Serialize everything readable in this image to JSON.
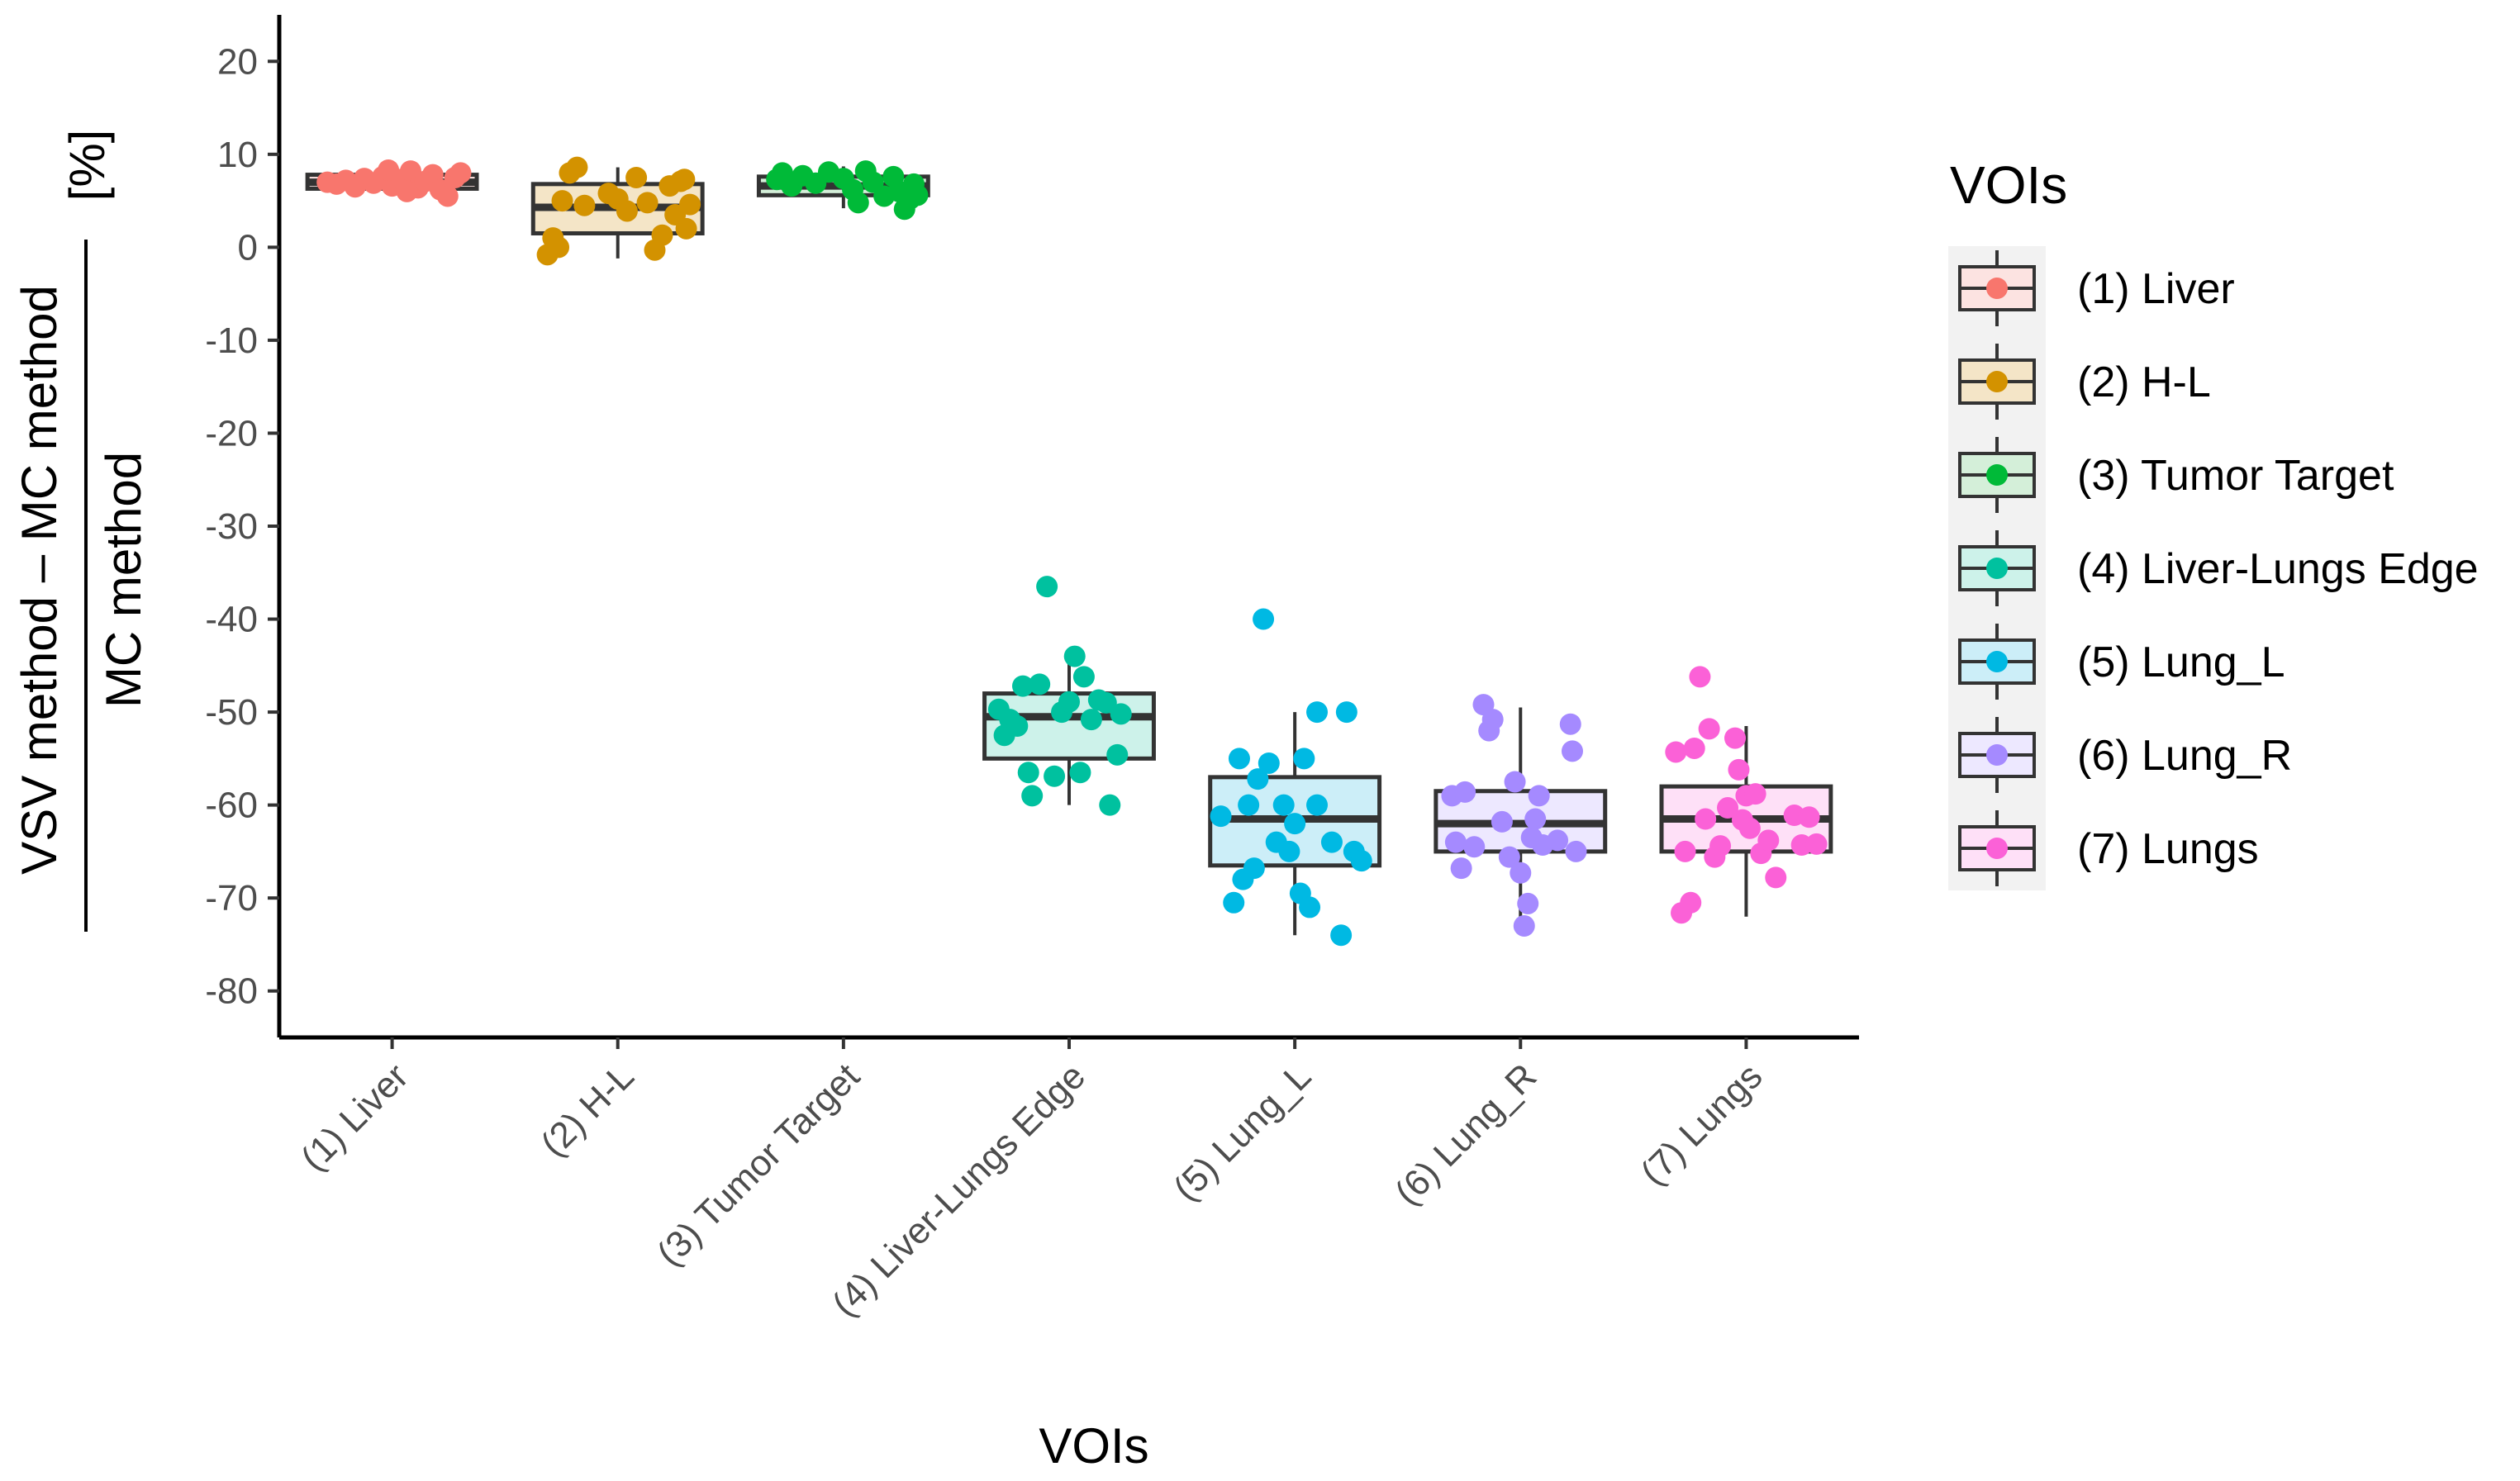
{
  "chart_data": {
    "type": "boxplot",
    "title": "",
    "xlabel": "VOIs",
    "ylabel": {
      "numerator": "VSV method – MC method",
      "denominator": "MC method",
      "unit": "[%]"
    },
    "ylim": [
      -85,
      25
    ],
    "yticks": [
      20,
      10,
      0,
      -10,
      -20,
      -30,
      -40,
      -50,
      -60,
      -70,
      -80
    ],
    "ytick_labels": [
      "20",
      "10",
      "0",
      "-10",
      "-20",
      "-30",
      "-40",
      "-50",
      "-60",
      "-70",
      "-80"
    ],
    "grid": false,
    "legend": {
      "title": "VOIs",
      "position": "right"
    },
    "categories": [
      "(1) Liver",
      "(2) H-L",
      "(3) Tumor Target",
      "(4) Liver-Lungs Edge",
      "(5) Lung_L",
      "(6) Lung_R",
      "(7) Lungs"
    ],
    "series": [
      {
        "name": "(1) Liver",
        "color": "#F8766D",
        "fill": "#FCE3E1",
        "box": {
          "whisker_low": 5.8,
          "q1": 6.3,
          "median": 7.0,
          "q3": 7.8,
          "whisker_high": 8.5
        },
        "points": [
          {
            "x": -0.35,
            "y": 7.0
          },
          {
            "x": -0.3,
            "y": 6.8
          },
          {
            "x": -0.25,
            "y": 7.2
          },
          {
            "x": -0.2,
            "y": 6.5
          },
          {
            "x": -0.15,
            "y": 7.4
          },
          {
            "x": -0.1,
            "y": 6.9
          },
          {
            "x": -0.05,
            "y": 7.6
          },
          {
            "x": 0.0,
            "y": 6.6
          },
          {
            "x": 0.05,
            "y": 7.3
          },
          {
            "x": 0.1,
            "y": 8.2
          },
          {
            "x": 0.14,
            "y": 6.4
          },
          {
            "x": 0.18,
            "y": 7.1
          },
          {
            "x": 0.22,
            "y": 7.8
          },
          {
            "x": 0.26,
            "y": 6.2
          },
          {
            "x": 0.3,
            "y": 5.5
          },
          {
            "x": 0.34,
            "y": 7.5
          },
          {
            "x": 0.37,
            "y": 8.0
          },
          {
            "x": -0.02,
            "y": 8.3
          },
          {
            "x": 0.08,
            "y": 6.0
          }
        ]
      },
      {
        "name": "(2) H-L",
        "color": "#D39200",
        "fill": "#F4E5C7",
        "box": {
          "whisker_low": -1.2,
          "q1": 1.5,
          "median": 4.3,
          "q3": 6.8,
          "whisker_high": 8.6
        },
        "points": [
          {
            "x": -0.38,
            "y": -0.8
          },
          {
            "x": -0.35,
            "y": 1.0
          },
          {
            "x": -0.32,
            "y": 0.0
          },
          {
            "x": -0.3,
            "y": 5.0
          },
          {
            "x": -0.26,
            "y": 8.0
          },
          {
            "x": -0.22,
            "y": 8.6
          },
          {
            "x": -0.18,
            "y": 4.5
          },
          {
            "x": -0.05,
            "y": 5.8
          },
          {
            "x": 0.0,
            "y": 5.2
          },
          {
            "x": 0.05,
            "y": 3.9
          },
          {
            "x": 0.1,
            "y": 7.5
          },
          {
            "x": 0.16,
            "y": 4.8
          },
          {
            "x": 0.2,
            "y": -0.3
          },
          {
            "x": 0.24,
            "y": 1.3
          },
          {
            "x": 0.28,
            "y": 6.6
          },
          {
            "x": 0.31,
            "y": 3.5
          },
          {
            "x": 0.34,
            "y": 7.1
          },
          {
            "x": 0.37,
            "y": 2.0
          },
          {
            "x": 0.39,
            "y": 4.6
          },
          {
            "x": 0.36,
            "y": 7.3
          }
        ]
      },
      {
        "name": "(3) Tumor Target",
        "color": "#00BA38",
        "fill": "#D4EFD9",
        "box": {
          "whisker_low": 4.2,
          "q1": 5.6,
          "median": 6.6,
          "q3": 7.6,
          "whisker_high": 8.7
        },
        "points": [
          {
            "x": -0.36,
            "y": 7.3
          },
          {
            "x": -0.33,
            "y": 8.0
          },
          {
            "x": -0.28,
            "y": 6.6
          },
          {
            "x": -0.22,
            "y": 7.7
          },
          {
            "x": -0.15,
            "y": 6.9
          },
          {
            "x": -0.08,
            "y": 8.1
          },
          {
            "x": 0.0,
            "y": 7.4
          },
          {
            "x": 0.05,
            "y": 6.2
          },
          {
            "x": 0.08,
            "y": 4.8
          },
          {
            "x": 0.12,
            "y": 8.2
          },
          {
            "x": 0.16,
            "y": 7.0
          },
          {
            "x": 0.22,
            "y": 5.5
          },
          {
            "x": 0.27,
            "y": 7.6
          },
          {
            "x": 0.3,
            "y": 6.0
          },
          {
            "x": 0.33,
            "y": 4.1
          },
          {
            "x": 0.36,
            "y": 5.2
          },
          {
            "x": 0.38,
            "y": 6.8
          },
          {
            "x": 0.4,
            "y": 5.6
          }
        ]
      },
      {
        "name": "(4) Liver-Lungs Edge",
        "color": "#00C19F",
        "fill": "#CDF2EA",
        "box": {
          "whisker_low": -60.0,
          "q1": -55.0,
          "median": -50.5,
          "q3": -48.0,
          "whisker_high": -44.5
        },
        "points": [
          {
            "x": -0.38,
            "y": -49.7
          },
          {
            "x": -0.35,
            "y": -52.5
          },
          {
            "x": -0.32,
            "y": -50.8
          },
          {
            "x": -0.28,
            "y": -51.5
          },
          {
            "x": -0.25,
            "y": -47.2
          },
          {
            "x": -0.22,
            "y": -56.5
          },
          {
            "x": -0.2,
            "y": -59.0
          },
          {
            "x": -0.16,
            "y": -47.0
          },
          {
            "x": -0.12,
            "y": -36.5
          },
          {
            "x": -0.08,
            "y": -56.9
          },
          {
            "x": -0.04,
            "y": -50.0
          },
          {
            "x": 0.0,
            "y": -48.9
          },
          {
            "x": 0.03,
            "y": -44.0
          },
          {
            "x": 0.06,
            "y": -56.5
          },
          {
            "x": 0.08,
            "y": -46.2
          },
          {
            "x": 0.12,
            "y": -50.8
          },
          {
            "x": 0.16,
            "y": -48.7
          },
          {
            "x": 0.2,
            "y": -49.0
          },
          {
            "x": 0.22,
            "y": -60.0
          },
          {
            "x": 0.26,
            "y": -54.6
          },
          {
            "x": 0.28,
            "y": -50.2
          }
        ]
      },
      {
        "name": "(5) Lung_L",
        "color": "#00B9E3",
        "fill": "#CCEEF8",
        "box": {
          "whisker_low": -74.0,
          "q1": -66.5,
          "median": -61.5,
          "q3": -57.0,
          "whisker_high": -50.0
        },
        "points": [
          {
            "x": -0.4,
            "y": -61.2
          },
          {
            "x": -0.33,
            "y": -70.5
          },
          {
            "x": -0.3,
            "y": -55.0
          },
          {
            "x": -0.28,
            "y": -68.0
          },
          {
            "x": -0.25,
            "y": -60.0
          },
          {
            "x": -0.22,
            "y": -66.8
          },
          {
            "x": -0.2,
            "y": -57.2
          },
          {
            "x": -0.17,
            "y": -40.0
          },
          {
            "x": -0.14,
            "y": -55.5
          },
          {
            "x": -0.1,
            "y": -64.0
          },
          {
            "x": -0.06,
            "y": -60.0
          },
          {
            "x": -0.03,
            "y": -65.0
          },
          {
            "x": 0.0,
            "y": -62.0
          },
          {
            "x": 0.03,
            "y": -69.5
          },
          {
            "x": 0.05,
            "y": -55.0
          },
          {
            "x": 0.08,
            "y": -71.0
          },
          {
            "x": 0.12,
            "y": -60.0
          },
          {
            "x": 0.2,
            "y": -64.0
          },
          {
            "x": 0.25,
            "y": -74.0
          },
          {
            "x": 0.28,
            "y": -50.0
          },
          {
            "x": 0.32,
            "y": -65.0
          },
          {
            "x": 0.36,
            "y": -66.0
          },
          {
            "x": 0.12,
            "y": -50.0
          }
        ]
      },
      {
        "name": "(6) Lung_R",
        "color": "#A58AFF",
        "fill": "#EDE8FF",
        "box": {
          "whisker_low": -73.0,
          "q1": -65.0,
          "median": -62.0,
          "q3": -58.5,
          "whisker_high": -49.5
        },
        "points": [
          {
            "x": -0.37,
            "y": -59.0
          },
          {
            "x": -0.35,
            "y": -64.0
          },
          {
            "x": -0.32,
            "y": -66.8
          },
          {
            "x": -0.3,
            "y": -58.6
          },
          {
            "x": -0.25,
            "y": -64.5
          },
          {
            "x": -0.2,
            "y": -49.2
          },
          {
            "x": -0.17,
            "y": -52.0
          },
          {
            "x": -0.15,
            "y": -50.8
          },
          {
            "x": -0.1,
            "y": -61.8
          },
          {
            "x": -0.06,
            "y": -65.6
          },
          {
            "x": -0.03,
            "y": -57.5
          },
          {
            "x": 0.0,
            "y": -67.3
          },
          {
            "x": 0.02,
            "y": -73.0
          },
          {
            "x": 0.04,
            "y": -70.6
          },
          {
            "x": 0.06,
            "y": -63.5
          },
          {
            "x": 0.08,
            "y": -61.5
          },
          {
            "x": 0.1,
            "y": -59.0
          },
          {
            "x": 0.12,
            "y": -64.3
          },
          {
            "x": 0.2,
            "y": -63.8
          },
          {
            "x": 0.27,
            "y": -51.3
          },
          {
            "x": 0.28,
            "y": -54.2
          },
          {
            "x": 0.3,
            "y": -65.0
          }
        ]
      },
      {
        "name": "(7) Lungs",
        "color": "#FB61D7",
        "fill": "#FEE0F7",
        "box": {
          "whisker_low": -72.0,
          "q1": -65.0,
          "median": -61.5,
          "q3": -58.0,
          "whisker_high": -51.5
        },
        "points": [
          {
            "x": -0.38,
            "y": -54.3
          },
          {
            "x": -0.35,
            "y": -71.6
          },
          {
            "x": -0.33,
            "y": -65.0
          },
          {
            "x": -0.3,
            "y": -70.5
          },
          {
            "x": -0.28,
            "y": -53.9
          },
          {
            "x": -0.25,
            "y": -46.2
          },
          {
            "x": -0.22,
            "y": -61.5
          },
          {
            "x": -0.2,
            "y": -51.8
          },
          {
            "x": -0.17,
            "y": -65.6
          },
          {
            "x": -0.14,
            "y": -64.4
          },
          {
            "x": -0.1,
            "y": -60.3
          },
          {
            "x": -0.06,
            "y": -52.8
          },
          {
            "x": -0.04,
            "y": -56.2
          },
          {
            "x": -0.02,
            "y": -61.6
          },
          {
            "x": 0.0,
            "y": -59.0
          },
          {
            "x": 0.02,
            "y": -62.5
          },
          {
            "x": 0.05,
            "y": -58.8
          },
          {
            "x": 0.08,
            "y": -65.2
          },
          {
            "x": 0.12,
            "y": -63.8
          },
          {
            "x": 0.16,
            "y": -67.8
          },
          {
            "x": 0.26,
            "y": -61.1
          },
          {
            "x": 0.3,
            "y": -64.3
          },
          {
            "x": 0.34,
            "y": -61.3
          },
          {
            "x": 0.38,
            "y": -64.2
          }
        ]
      }
    ]
  }
}
